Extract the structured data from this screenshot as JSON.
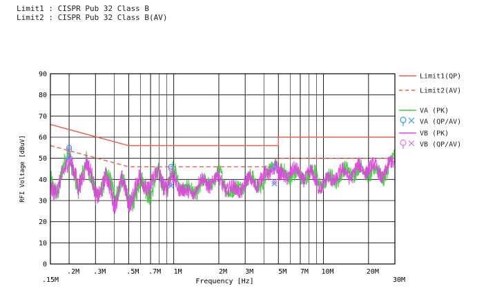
{
  "header": {
    "limit1": "Limit1 : CISPR Pub 32 Class B",
    "limit2": "Limit2 : CISPR Pub 32 Class B(AV)"
  },
  "chart_data": {
    "type": "line",
    "xscale": "log",
    "xlim": [
      0.15,
      30
    ],
    "ylim": [
      0,
      90
    ],
    "xlabel": "Frequency [Hz]",
    "ylabel": "RFI Voltage [dBuV]",
    "grid": true,
    "legend_position": "right",
    "x_ticks": [
      {
        "value": 0.15,
        "label": ".15M"
      },
      {
        "value": 0.2,
        "label": ".2M"
      },
      {
        "value": 0.3,
        "label": ".3M"
      },
      {
        "value": 0.5,
        "label": ".5M"
      },
      {
        "value": 0.7,
        "label": ".7M"
      },
      {
        "value": 1,
        "label": "1M"
      },
      {
        "value": 2,
        "label": "2M"
      },
      {
        "value": 3,
        "label": "3M"
      },
      {
        "value": 5,
        "label": "5M"
      },
      {
        "value": 7,
        "label": "7M"
      },
      {
        "value": 10,
        "label": "10M"
      },
      {
        "value": 20,
        "label": "20M"
      },
      {
        "value": 30,
        "label": "30M"
      }
    ],
    "y_ticks": [
      0,
      10,
      20,
      30,
      40,
      50,
      60,
      70,
      80,
      90
    ],
    "minor_x_grid": [
      0.4,
      0.6,
      0.8,
      0.9,
      4,
      6,
      8,
      9
    ],
    "series": [
      {
        "name": "Limit1(QP)",
        "color": "#e8604c",
        "dash": "solid",
        "x": [
          0.15,
          0.5,
          0.5,
          5,
          5,
          30
        ],
        "y": [
          66,
          56,
          56,
          56,
          60,
          60
        ]
      },
      {
        "name": "Limit2(AV)",
        "color": "#e8604c",
        "dash": "dashed",
        "x": [
          0.15,
          0.5,
          0.5,
          5,
          5,
          30
        ],
        "y": [
          56,
          46,
          46,
          46,
          50,
          50
        ]
      },
      {
        "name": "VA (PK)",
        "color": "#3ccc3c",
        "dash": "solid",
        "x": [
          0.15,
          0.17,
          0.2,
          0.23,
          0.26,
          0.3,
          0.35,
          0.4,
          0.45,
          0.5,
          0.6,
          0.7,
          0.8,
          0.9,
          1,
          1.2,
          1.5,
          2,
          2.5,
          3,
          4,
          4.8,
          5,
          6,
          7,
          8,
          10,
          12,
          15,
          20,
          25,
          30
        ],
        "y": [
          40,
          35,
          55,
          32,
          52,
          30,
          42,
          33,
          40,
          28,
          38,
          34,
          42,
          36,
          44,
          34,
          36,
          42,
          33,
          40,
          38,
          50,
          42,
          43,
          40,
          44,
          38,
          41,
          44,
          44,
          42,
          50
        ]
      },
      {
        "name": "VB (PK)",
        "color": "#e040e0",
        "dash": "solid",
        "x": [
          0.15,
          0.17,
          0.2,
          0.23,
          0.26,
          0.3,
          0.35,
          0.4,
          0.45,
          0.5,
          0.6,
          0.7,
          0.8,
          0.9,
          1,
          1.2,
          1.5,
          2,
          2.5,
          3,
          4,
          4.8,
          5,
          6,
          7,
          8,
          10,
          12,
          15,
          20,
          25,
          30
        ],
        "y": [
          38,
          34,
          53,
          34,
          50,
          32,
          40,
          30,
          38,
          30,
          40,
          36,
          44,
          35,
          42,
          32,
          38,
          40,
          34,
          38,
          40,
          48,
          40,
          44,
          42,
          42,
          37,
          42,
          43,
          46,
          43,
          48
        ]
      }
    ],
    "markers": [
      {
        "series": "VA (QP/AV)",
        "color": "#3399ff",
        "points": [
          {
            "x": 0.2,
            "y": 55,
            "shape": "o"
          },
          {
            "x": 0.2,
            "y": 50,
            "shape": "x"
          },
          {
            "x": 0.96,
            "y": 46,
            "shape": "o"
          },
          {
            "x": 0.96,
            "y": 37,
            "shape": "x"
          },
          {
            "x": 4.7,
            "y": 46,
            "shape": "o"
          },
          {
            "x": 4.7,
            "y": 38,
            "shape": "x"
          }
        ]
      },
      {
        "series": "VB (QP/AV)",
        "color": "#e070e0",
        "points": [
          {
            "x": 0.2,
            "y": 54,
            "shape": "o"
          },
          {
            "x": 0.2,
            "y": 49,
            "shape": "x"
          },
          {
            "x": 0.96,
            "y": 45,
            "shape": "o"
          },
          {
            "x": 0.96,
            "y": 38,
            "shape": "x"
          },
          {
            "x": 4.7,
            "y": 45,
            "shape": "o"
          },
          {
            "x": 4.7,
            "y": 39,
            "shape": "x"
          }
        ]
      }
    ],
    "legend": [
      {
        "label": "Limit1(QP)",
        "color": "#e8604c",
        "kind": "line"
      },
      {
        "label": "Limit2(AV)",
        "color": "#e8604c",
        "kind": "dash"
      },
      {
        "label": "VA (PK)",
        "color": "#3ccc3c",
        "kind": "line"
      },
      {
        "label": "VA (QP/AV)",
        "color": "#3399ff",
        "kind": "marker"
      },
      {
        "label": "VB (PK)",
        "color": "#e040e0",
        "kind": "line"
      },
      {
        "label": "VB (QP/AV)",
        "color": "#e070e0",
        "kind": "marker"
      }
    ]
  }
}
